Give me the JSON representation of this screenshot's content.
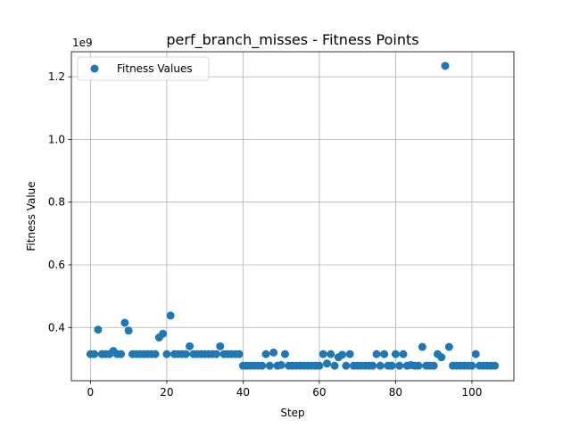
{
  "chart_data": {
    "type": "scatter",
    "title": "perf_branch_misses - Fitness Points",
    "xlabel": "Step",
    "ylabel": "Fitness Value",
    "y_offset_label": "1e9",
    "y_scale": 1000000000,
    "xlim": [
      -5,
      111
    ],
    "ylim": [
      0.23,
      1.28
    ],
    "x_ticks": [
      0,
      20,
      40,
      60,
      80,
      100
    ],
    "y_ticks": [
      0.4,
      0.6,
      0.8,
      1.0,
      1.2
    ],
    "y_tick_labels": [
      "0.4",
      "0.6",
      "0.8",
      "1.0",
      "1.2"
    ],
    "grid": true,
    "legend_position": "upper-left",
    "series": [
      {
        "name": "Fitness Values",
        "color": "#1f77b4",
        "x": [
          0,
          1,
          2,
          3,
          4,
          5,
          6,
          7,
          8,
          9,
          10,
          11,
          12,
          13,
          14,
          15,
          16,
          17,
          18,
          19,
          20,
          21,
          22,
          23,
          24,
          25,
          26,
          27,
          28,
          29,
          30,
          31,
          32,
          33,
          34,
          35,
          36,
          37,
          38,
          39,
          40,
          41,
          42,
          43,
          44,
          45,
          46,
          47,
          48,
          49,
          50,
          51,
          52,
          53,
          54,
          55,
          56,
          57,
          58,
          59,
          60,
          61,
          62,
          63,
          64,
          65,
          66,
          67,
          68,
          69,
          70,
          71,
          72,
          73,
          74,
          75,
          76,
          77,
          78,
          79,
          80,
          81,
          82,
          83,
          84,
          85,
          86,
          87,
          88,
          89,
          90,
          91,
          92,
          93,
          94,
          95,
          96,
          97,
          98,
          99,
          100,
          101,
          102,
          103,
          104,
          105,
          106
        ],
        "y": [
          0.315,
          0.315,
          0.393,
          0.315,
          0.315,
          0.315,
          0.325,
          0.315,
          0.315,
          0.415,
          0.39,
          0.315,
          0.315,
          0.315,
          0.315,
          0.315,
          0.315,
          0.315,
          0.368,
          0.38,
          0.315,
          0.438,
          0.315,
          0.315,
          0.315,
          0.315,
          0.34,
          0.315,
          0.315,
          0.315,
          0.315,
          0.315,
          0.315,
          0.315,
          0.34,
          0.315,
          0.315,
          0.315,
          0.315,
          0.315,
          0.278,
          0.278,
          0.278,
          0.278,
          0.278,
          0.278,
          0.315,
          0.278,
          0.32,
          0.278,
          0.28,
          0.315,
          0.278,
          0.278,
          0.278,
          0.278,
          0.278,
          0.278,
          0.278,
          0.278,
          0.278,
          0.315,
          0.285,
          0.315,
          0.278,
          0.305,
          0.313,
          0.278,
          0.315,
          0.278,
          0.278,
          0.278,
          0.278,
          0.278,
          0.278,
          0.315,
          0.278,
          0.315,
          0.278,
          0.278,
          0.315,
          0.278,
          0.315,
          0.278,
          0.28,
          0.278,
          0.278,
          0.338,
          0.278,
          0.278,
          0.278,
          0.315,
          0.305,
          1.235,
          0.338,
          0.278,
          0.278,
          0.278,
          0.278,
          0.278,
          0.278,
          0.315,
          0.278,
          0.278,
          0.278,
          0.278,
          0.278
        ]
      }
    ]
  }
}
